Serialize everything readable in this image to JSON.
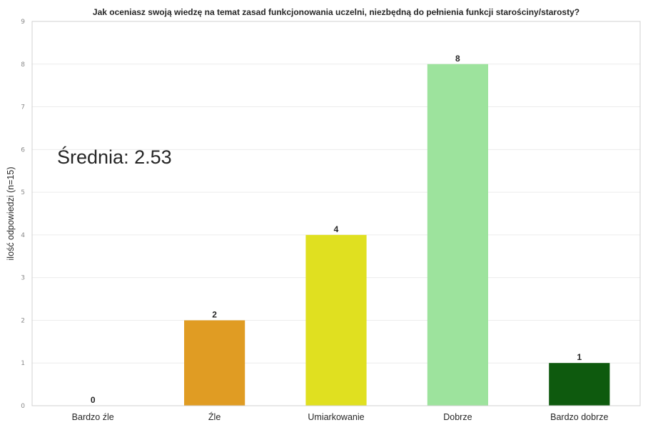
{
  "chart_data": {
    "type": "bar",
    "title": "Jak oceniasz swoją wiedzę na temat zasad funkcjonowania uczelni, niezbędną do pełnienia funkcji starościny/starosty?",
    "xlabel": "",
    "ylabel": "ilość odpowiedzi (n=15)",
    "categories": [
      "Bardzo źle",
      "Źle",
      "Umiarkowanie",
      "Dobrze",
      "Bardzo dobrze"
    ],
    "values": [
      0,
      2,
      4,
      8,
      1
    ],
    "data_labels": [
      "0",
      "2",
      "4",
      "8",
      "1"
    ],
    "colors": [
      "#d62728",
      "#e09c23",
      "#e0e020",
      "#9de39d",
      "#0e5a0e"
    ],
    "ylim": [
      0,
      9
    ],
    "yticks": [
      0,
      1,
      2,
      3,
      4,
      5,
      6,
      7,
      8,
      9
    ],
    "grid": true,
    "annotation": "Średnia: 2.53"
  }
}
